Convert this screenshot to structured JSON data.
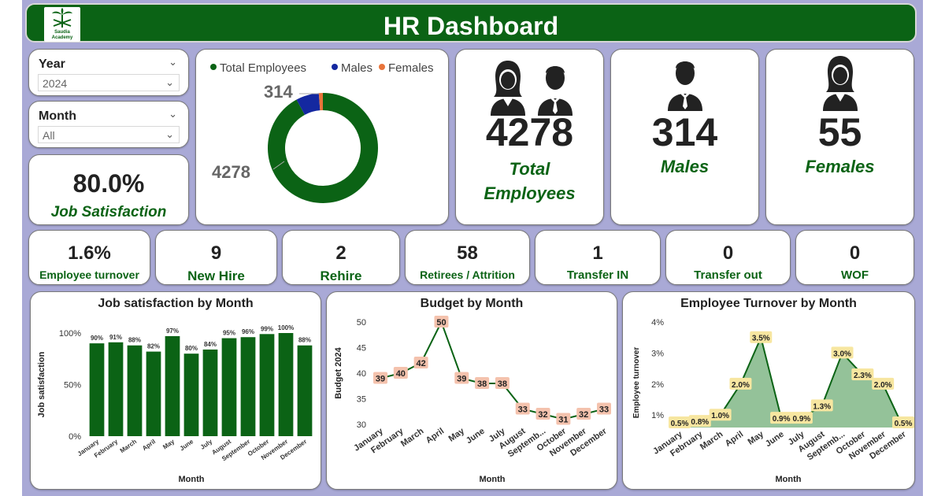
{
  "header": {
    "title": "HR Dashboard",
    "logo_line1": "Saudia",
    "logo_line2": "Academy"
  },
  "filters": {
    "year": {
      "label": "Year",
      "value": "2024"
    },
    "month": {
      "label": "Month",
      "value": "All"
    }
  },
  "job_satisfaction": {
    "value": "80.0%",
    "label": "Job Satisfaction"
  },
  "donut": {
    "legend": [
      "Total Employees",
      "Males",
      "Females"
    ],
    "colors": [
      "#0b6315",
      "#1428a0",
      "#e8743b"
    ],
    "values": [
      4278,
      314,
      55
    ],
    "label_total": "4278",
    "label_males": "314"
  },
  "cards": {
    "total": {
      "value": "4278",
      "label_line1": "Total",
      "label_line2": "Employees"
    },
    "males": {
      "value": "314",
      "label": "Males"
    },
    "females": {
      "value": "55",
      "label": "Females"
    }
  },
  "kpis": [
    {
      "value": "1.6%",
      "label": "Employee turnover"
    },
    {
      "value": "9",
      "label": "New Hire"
    },
    {
      "value": "2",
      "label": "Rehire"
    },
    {
      "value": "58",
      "label": "Retirees / Attrition"
    },
    {
      "value": "1",
      "label": "Transfer IN"
    },
    {
      "value": "0",
      "label": "Transfer out"
    },
    {
      "value": "0",
      "label": "WOF"
    }
  ],
  "chart_data": [
    {
      "type": "bar",
      "title": "Job satisfaction by Month",
      "xlabel": "Month",
      "ylabel": "Job satisfaction",
      "categories": [
        "January",
        "February",
        "March",
        "April",
        "May",
        "June",
        "July",
        "August",
        "September",
        "October",
        "November",
        "December"
      ],
      "values": [
        90,
        91,
        88,
        82,
        97,
        80,
        84,
        95,
        96,
        99,
        100,
        88
      ],
      "data_labels": [
        "90%",
        "91%",
        "88%",
        "82%",
        "97%",
        "80%",
        "84%",
        "95%",
        "96%",
        "99%",
        "100%",
        "88%"
      ],
      "yticks": [
        "0%",
        "50%",
        "100%"
      ],
      "ylim": [
        0,
        100
      ],
      "color": "#0b6315"
    },
    {
      "type": "line",
      "title": "Budget by Month",
      "xlabel": "Month",
      "ylabel": "Budget 2024",
      "categories": [
        "January",
        "February",
        "March",
        "April",
        "May",
        "June",
        "July",
        "August",
        "September",
        "October",
        "November",
        "December"
      ],
      "tick_labels": [
        "January",
        "February",
        "March",
        "April",
        "May",
        "June",
        "July",
        "August",
        "Septemb...",
        "October",
        "November",
        "December"
      ],
      "values": [
        39,
        40,
        42,
        50,
        39,
        38,
        38,
        33,
        32,
        31,
        32,
        33
      ],
      "yticks": [
        "30",
        "35",
        "40",
        "45",
        "50"
      ],
      "ylim": [
        30,
        50
      ],
      "color": "#0b6315",
      "label_bg": "#f4c2ad"
    },
    {
      "type": "area",
      "title": "Employee Turnover by Month",
      "xlabel": "Month",
      "ylabel": "Employee turnover",
      "categories": [
        "January",
        "February",
        "March",
        "April",
        "May",
        "June",
        "July",
        "August",
        "September",
        "October",
        "November",
        "December"
      ],
      "tick_labels": [
        "January",
        "February",
        "March",
        "April",
        "May",
        "June",
        "July",
        "August",
        "Septemb...",
        "October",
        "November",
        "December"
      ],
      "values": [
        0.5,
        0.8,
        1.0,
        2.0,
        3.5,
        0.9,
        0.9,
        1.3,
        3.0,
        2.3,
        2.0,
        0.5
      ],
      "data_labels": [
        "0.5%",
        "0.8%",
        "1.0%",
        "2.0%",
        "3.5%",
        "0.9%",
        "0.9%",
        "1.3%",
        "3.0%",
        "2.3%",
        "2.0%",
        "0.5%"
      ],
      "yticks": [
        "1%",
        "2%",
        "3%",
        "4%"
      ],
      "ylim": [
        0.6,
        4
      ],
      "color": "#0b6315",
      "fill": "#94c299",
      "label_bg": "#f7e6a0"
    }
  ]
}
